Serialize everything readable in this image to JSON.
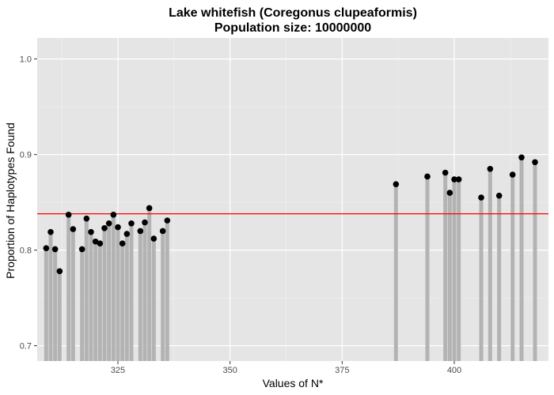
{
  "chart_data": {
    "type": "scatter",
    "title": "Lake whitefish (Coregonus clupeaformis)",
    "subtitle": "Population size: 10000000",
    "xlabel": "Values of N*",
    "ylabel": "Proportion of Haplotypes Found",
    "xlim": [
      307,
      421
    ],
    "ylim": [
      0.684,
      1.022
    ],
    "x_ticks": [
      325,
      350,
      375,
      400
    ],
    "x_tick_labels": [
      "325",
      "350",
      "375",
      "400"
    ],
    "y_ticks": [
      0.7,
      0.8,
      0.9,
      1.0
    ],
    "y_tick_labels": [
      "0.7",
      "0.8",
      "0.9",
      "1.0"
    ],
    "grid": true,
    "reference_line": {
      "y": 0.838,
      "color": "#ff0000"
    },
    "bar_color": "#b3b3b3",
    "point_color": "#000000",
    "panel_background": "#e5e5e5",
    "points": [
      {
        "x": 309,
        "y": 0.802
      },
      {
        "x": 310,
        "y": 0.819
      },
      {
        "x": 311,
        "y": 0.801
      },
      {
        "x": 312,
        "y": 0.778
      },
      {
        "x": 314,
        "y": 0.837
      },
      {
        "x": 315,
        "y": 0.822
      },
      {
        "x": 317,
        "y": 0.801
      },
      {
        "x": 318,
        "y": 0.833
      },
      {
        "x": 319,
        "y": 0.819
      },
      {
        "x": 320,
        "y": 0.809
      },
      {
        "x": 321,
        "y": 0.807
      },
      {
        "x": 322,
        "y": 0.823
      },
      {
        "x": 323,
        "y": 0.828
      },
      {
        "x": 324,
        "y": 0.837
      },
      {
        "x": 325,
        "y": 0.824
      },
      {
        "x": 326,
        "y": 0.807
      },
      {
        "x": 327,
        "y": 0.817
      },
      {
        "x": 328,
        "y": 0.828
      },
      {
        "x": 330,
        "y": 0.82
      },
      {
        "x": 331,
        "y": 0.829
      },
      {
        "x": 332,
        "y": 0.844
      },
      {
        "x": 333,
        "y": 0.812
      },
      {
        "x": 335,
        "y": 0.82
      },
      {
        "x": 336,
        "y": 0.831
      },
      {
        "x": 387,
        "y": 0.869
      },
      {
        "x": 394,
        "y": 0.877
      },
      {
        "x": 398,
        "y": 0.881
      },
      {
        "x": 399,
        "y": 0.86
      },
      {
        "x": 400,
        "y": 0.874
      },
      {
        "x": 401,
        "y": 0.874
      },
      {
        "x": 406,
        "y": 0.855
      },
      {
        "x": 408,
        "y": 0.885
      },
      {
        "x": 410,
        "y": 0.857
      },
      {
        "x": 413,
        "y": 0.879
      },
      {
        "x": 415,
        "y": 0.897
      },
      {
        "x": 418,
        "y": 0.892
      }
    ]
  }
}
